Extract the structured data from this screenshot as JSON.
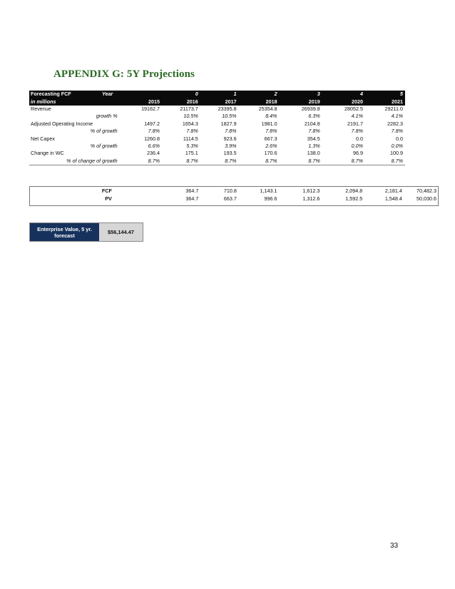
{
  "heading": "APPENDIX G: 5Y Projections",
  "table": {
    "corner_label": "Forecasting FCF",
    "year_label": "Year",
    "units_label": "in millions",
    "period_numbers": [
      "",
      "0",
      "1",
      "2",
      "3",
      "4",
      "5"
    ],
    "years": [
      "2015",
      "2016",
      "2017",
      "2018",
      "2019",
      "2020",
      "2021"
    ],
    "rows": [
      {
        "label": "Revenue",
        "italic": false,
        "values": [
          "19162.7",
          "21173.7",
          "23395.8",
          "25354.8",
          "26939.8",
          "28052.5",
          "29211.0"
        ]
      },
      {
        "label": "growth %",
        "italic": true,
        "values": [
          "",
          "10.5%",
          "10.5%",
          "8.4%",
          "6.3%",
          "4.1%",
          "4.1%"
        ]
      },
      {
        "label": "Adjusted Operating Income",
        "italic": false,
        "values": [
          "1497.2",
          "1654.3",
          "1827.9",
          "1981.0",
          "2104.8",
          "2191.7",
          "2282.3"
        ]
      },
      {
        "label": "% of growth",
        "italic": true,
        "values": [
          "7.8%",
          "7.8%",
          "7.8%",
          "7.8%",
          "7.8%",
          "7.8%",
          "7.8%"
        ]
      },
      {
        "label": "Net Capex",
        "italic": false,
        "values": [
          "1260.8",
          "1114.5",
          "923.6",
          "667.3",
          "354.5",
          "0.0",
          "0.0"
        ]
      },
      {
        "label": "% of growth",
        "italic": true,
        "values": [
          "6.6%",
          "5.3%",
          "3.9%",
          "2.6%",
          "1.3%",
          "0.0%",
          "0.0%"
        ]
      },
      {
        "label": "Change in WC",
        "italic": false,
        "values": [
          "236.4",
          "175.1",
          "193.5",
          "170.6",
          "138.0",
          "96.9",
          "100.9"
        ]
      },
      {
        "label": "% of change of growth",
        "italic": true,
        "values": [
          "8.7%",
          "8.7%",
          "8.7%",
          "8.7%",
          "8.7%",
          "8.7%",
          "8.7%"
        ]
      }
    ]
  },
  "fcf": {
    "rows": [
      {
        "label": "FCF",
        "values": [
          "",
          "364.7",
          "710.8",
          "1,143.1",
          "1,612.3",
          "2,094.8",
          "2,181.4",
          "70,482.3"
        ]
      },
      {
        "label": "PV",
        "values": [
          "",
          "364.7",
          "663.7",
          "996.6",
          "1,312.6",
          "1,592.5",
          "1,548.4",
          "50,030.6"
        ]
      }
    ]
  },
  "ev": {
    "label_line1": "Enterprise Value, 5 yr.",
    "label_line2": "forecast",
    "value": "$56,144.47"
  },
  "page_number": "33",
  "colors": {
    "heading": "#2c6a23",
    "ev_label_bg": "#16325c",
    "header_bg": "#0b0b0b"
  }
}
